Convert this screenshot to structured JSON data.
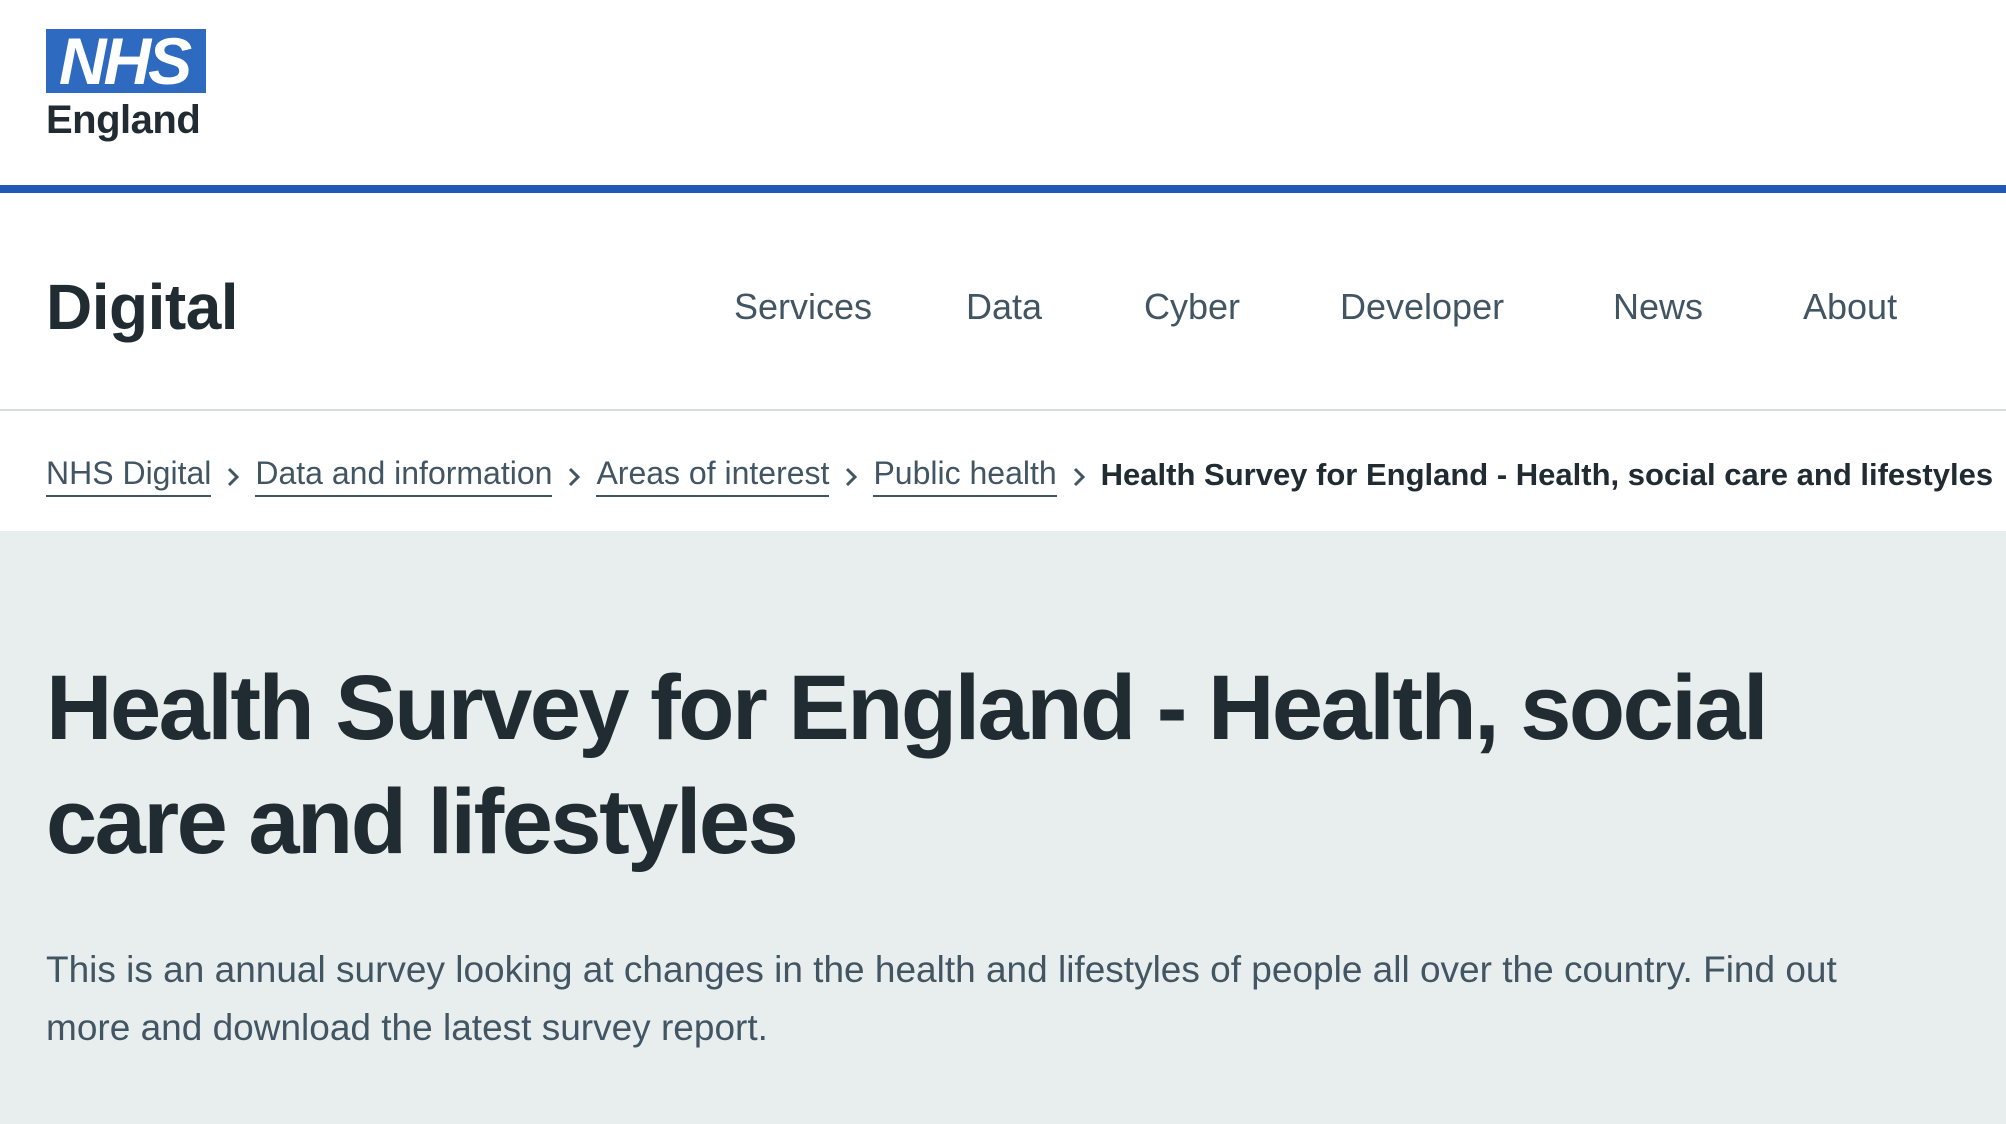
{
  "brand": {
    "logo_text": "NHS",
    "logo_subtext": "England",
    "logo_color": "#2f6ac1",
    "accent_color": "#2158b5"
  },
  "site": {
    "name": "Digital"
  },
  "nav": {
    "items": [
      {
        "label": "Services"
      },
      {
        "label": "Data"
      },
      {
        "label": "Cyber"
      },
      {
        "label": "Developer"
      },
      {
        "label": "News"
      },
      {
        "label": "About"
      }
    ]
  },
  "breadcrumb": {
    "items": [
      {
        "label": "NHS Digital"
      },
      {
        "label": "Data and information"
      },
      {
        "label": "Areas of interest"
      },
      {
        "label": "Public health"
      }
    ],
    "current": "Health Survey for England - Health, social care and lifestyles",
    "separator_icon": "chevron-right-icon"
  },
  "hero": {
    "title": "Health Survey for England - Health, social care and lifestyles",
    "description": "This is an annual survey looking at changes in the health and lifestyles of people all over the country. Find out more and download the latest survey report.",
    "background_color": "#e8edee"
  }
}
